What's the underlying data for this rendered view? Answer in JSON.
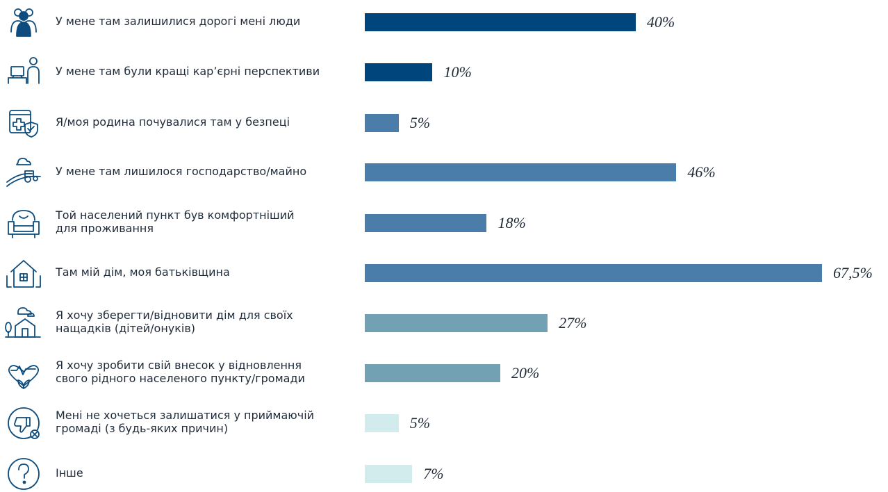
{
  "chart_data": {
    "type": "bar",
    "orientation": "horizontal",
    "xlim": [
      0,
      67.5
    ],
    "grid": false,
    "categories": [
      "У мене там залишилися дорогі мені люди",
      "У мене там були кращі кар’єрні перспективи",
      "Я/моя родина почувалися там у безпеці",
      "У мене там лишилося господарство/майно",
      "Той населений пункт був комфортніший\nдля проживання",
      "Там мій дім, моя батьківщина",
      "Я хочу зберегти/відновити дім для своїх\nнащадків (дітей/онуків)",
      "Я хочу зробити свій внесок у відновлення\nсвого рідного населеного пункту/громади",
      "Мені не хочеться залишатися у приймаючій\nгромаді (з будь-яких причин)",
      "Інше"
    ],
    "values": [
      40,
      10,
      5,
      46,
      18,
      67.5,
      27,
      20,
      5,
      7
    ],
    "value_labels": [
      "40%",
      "10%",
      "5%",
      "46%",
      "18%",
      "67,5%",
      "27%",
      "20%",
      "5%",
      "7%"
    ],
    "bar_colors": [
      "#00467c",
      "#00467c",
      "#4a7daa",
      "#4a7daa",
      "#4a7daa",
      "#4a7daa",
      "#72a1b3",
      "#72a1b3",
      "#d2ecee",
      "#d2ecee"
    ],
    "icons": [
      "people-group-icon",
      "office-worker-icon",
      "medical-shield-icon",
      "farm-tractor-icon",
      "armchair-icon",
      "house-icon",
      "family-home-icon",
      "heart-lotus-icon",
      "thumbs-down-icon",
      "question-icon"
    ]
  }
}
